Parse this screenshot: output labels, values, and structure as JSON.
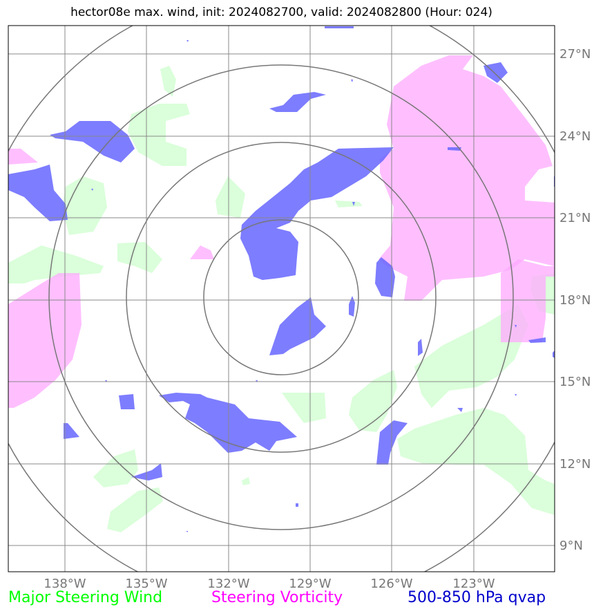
{
  "title": "hector08e max. wind, init: 2024082700, valid: 2024082800 (Hour: 024)",
  "map": {
    "lon_labels": [
      "138°W",
      "135°W",
      "132°W",
      "129°W",
      "126°W",
      "123°W"
    ],
    "lat_labels": [
      "27°N",
      "24°N",
      "21°N",
      "18°N",
      "15°N",
      "12°N",
      "9°N"
    ],
    "range_rings": 4,
    "colors": {
      "steering_wind": "#d4ffd4",
      "steering_vorticity": "#ffaaff",
      "qvap": "#6666ff",
      "gridline": "#888888",
      "ring": "#777777"
    }
  },
  "legend": {
    "wind": "Major Steering Wind",
    "vorticity": "Steering Vorticity",
    "qvap": "500-850 hPa qvap"
  }
}
